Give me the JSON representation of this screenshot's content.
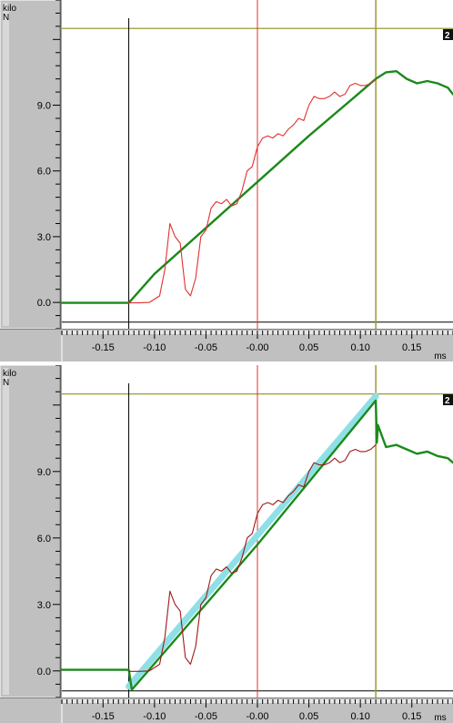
{
  "chart_data": [
    {
      "type": "line",
      "unit_top": "kilo",
      "unit_bottom": "N",
      "x_unit": "ms",
      "channel_badge": "2",
      "xlim": [
        -0.19,
        0.19
      ],
      "ylim": [
        -1.2,
        13.8
      ],
      "y_ticks": [
        0.0,
        3.0,
        6.0,
        9.0
      ],
      "y_tick_labels": [
        "0.0",
        "3.0",
        "6.0",
        "9.0"
      ],
      "x_ticks": [
        -0.15,
        -0.1,
        -0.05,
        0.0,
        0.05,
        0.1,
        0.15
      ],
      "x_tick_labels": [
        "-0.15",
        "-0.10",
        "-0.05",
        "-0.00",
        "0.05",
        "0.10",
        "0.15"
      ],
      "cursors": {
        "start": -0.125,
        "center": 0.0,
        "end": 0.115,
        "level_high": 12.5,
        "baseline": -0.9
      },
      "series": [
        {
          "color": "#1a8a1a",
          "x": [
            -0.19,
            -0.125,
            -0.1,
            -0.05,
            0.0,
            0.05,
            0.1,
            0.115,
            0.125,
            0.135,
            0.145,
            0.155,
            0.165,
            0.175,
            0.185,
            0.19
          ],
          "y": [
            -0.02,
            -0.02,
            1.3,
            3.4,
            5.5,
            7.6,
            9.6,
            10.2,
            10.5,
            10.55,
            10.2,
            10.0,
            10.1,
            10.0,
            9.8,
            9.5
          ]
        },
        {
          "color": "#e23030",
          "x": [
            -0.125,
            -0.115,
            -0.105,
            -0.095,
            -0.09,
            -0.085,
            -0.08,
            -0.075,
            -0.07,
            -0.065,
            -0.06,
            -0.055,
            -0.05,
            -0.045,
            -0.04,
            -0.035,
            -0.03,
            -0.025,
            -0.02,
            -0.015,
            -0.01,
            -0.005,
            0.0,
            0.005,
            0.01,
            0.015,
            0.02,
            0.025,
            0.03,
            0.035,
            0.04,
            0.045,
            0.05,
            0.055,
            0.06,
            0.065,
            0.07,
            0.075,
            0.08,
            0.085,
            0.09,
            0.095,
            0.1,
            0.105,
            0.11,
            0.115
          ],
          "y": [
            -0.02,
            -0.02,
            0.0,
            0.3,
            1.5,
            3.6,
            3.0,
            2.7,
            0.6,
            0.3,
            1.1,
            3.0,
            3.3,
            4.3,
            4.6,
            4.5,
            4.7,
            4.4,
            4.5,
            5.1,
            6.0,
            6.2,
            7.1,
            7.5,
            7.6,
            7.5,
            7.7,
            7.6,
            7.9,
            8.1,
            8.4,
            8.3,
            9.0,
            9.4,
            9.3,
            9.3,
            9.4,
            9.6,
            9.4,
            9.5,
            9.9,
            10.0,
            9.9,
            9.9,
            10.0,
            10.2
          ]
        }
      ]
    },
    {
      "type": "line",
      "unit_top": "kilo",
      "unit_bottom": "N",
      "x_unit": "ms",
      "channel_badge": "2",
      "xlim": [
        -0.19,
        0.19
      ],
      "ylim": [
        -1.2,
        13.8
      ],
      "y_ticks": [
        0.0,
        3.0,
        6.0,
        9.0
      ],
      "y_tick_labels": [
        "0.0",
        "3.0",
        "6.0",
        "9.0"
      ],
      "x_ticks": [
        -0.15,
        -0.1,
        -0.05,
        0.0,
        0.05,
        0.1,
        0.15
      ],
      "x_tick_labels": [
        "-0.15",
        "-0.10",
        "-0.05",
        "-0.00",
        "0.05",
        "0.10",
        "0.15"
      ],
      "cursors": {
        "start": -0.125,
        "center": 0.0,
        "end": 0.115,
        "level_high": 12.5,
        "baseline": -0.9
      },
      "series": [
        {
          "color": "#8fe0e6",
          "x": [
            -0.125,
            0.115
          ],
          "y": [
            -0.7,
            12.4
          ]
        },
        {
          "color": "#1a8a1a",
          "x": [
            -0.19,
            -0.125,
            -0.122,
            0.0,
            0.115,
            0.116,
            0.117,
            0.125,
            0.135,
            0.145,
            0.155,
            0.165,
            0.175,
            0.185,
            0.19
          ],
          "y": [
            0.05,
            0.05,
            -0.85,
            5.7,
            12.2,
            10.3,
            11.1,
            10.1,
            10.2,
            10.0,
            9.8,
            9.9,
            9.7,
            9.6,
            9.4
          ]
        },
        {
          "color": "#a01818",
          "x": [
            -0.125,
            -0.115,
            -0.105,
            -0.095,
            -0.09,
            -0.085,
            -0.08,
            -0.075,
            -0.07,
            -0.065,
            -0.06,
            -0.055,
            -0.05,
            -0.045,
            -0.04,
            -0.035,
            -0.03,
            -0.025,
            -0.02,
            -0.015,
            -0.01,
            -0.005,
            0.0,
            0.005,
            0.01,
            0.015,
            0.02,
            0.025,
            0.03,
            0.035,
            0.04,
            0.045,
            0.05,
            0.055,
            0.06,
            0.065,
            0.07,
            0.075,
            0.08,
            0.085,
            0.09,
            0.095,
            0.1,
            0.105,
            0.11,
            0.115
          ],
          "y": [
            -0.02,
            -0.02,
            0.0,
            0.3,
            1.5,
            3.6,
            3.0,
            2.7,
            0.6,
            0.3,
            1.1,
            3.0,
            3.3,
            4.3,
            4.6,
            4.5,
            4.7,
            4.4,
            4.5,
            5.1,
            6.0,
            6.2,
            7.1,
            7.5,
            7.6,
            7.5,
            7.7,
            7.6,
            7.9,
            8.1,
            8.4,
            8.3,
            9.0,
            9.4,
            9.3,
            9.3,
            9.4,
            9.6,
            9.4,
            9.5,
            9.9,
            10.0,
            9.9,
            9.9,
            10.0,
            10.2
          ]
        }
      ]
    }
  ]
}
